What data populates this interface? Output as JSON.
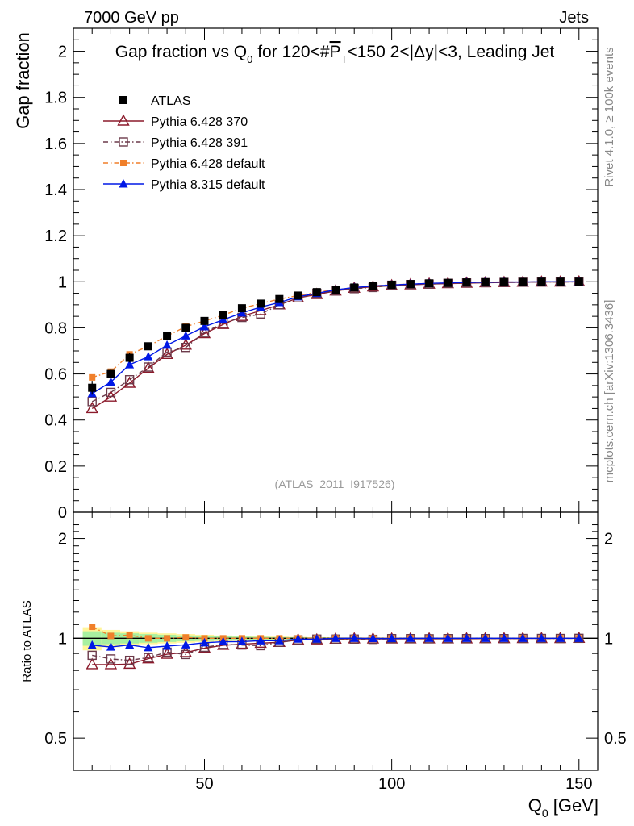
{
  "header": {
    "left": "7000 GeV pp",
    "right": "Jets"
  },
  "side_labels": {
    "rivet": "Rivet 4.1.0, ≥ 100k events",
    "mcplots": "mcplots.cern.ch [arXiv:1306.3436]"
  },
  "colors": {
    "atlas": "#000000",
    "py6_370": "#8b1a2b",
    "py6_391": "#6b3a4a",
    "py6_default": "#f07f2a",
    "py8_default": "#0018e6",
    "band_yellow": "#fff59a",
    "band_green": "#a8f0a0"
  },
  "chart_data": {
    "type": "line",
    "title": "Gap fraction vs Q0 for 120<#PT<150  2<|Δy|<3, Leading Jet",
    "title_parts": {
      "lead": "Gap fraction vs Q",
      "sub": "0",
      "for": " for 120<#",
      "p": "P",
      "t": "T",
      "tail": "<150  2<|Δy|<3, Leading Jet"
    },
    "xlabel": {
      "main": "Q",
      "sub": "0",
      "unit": " [GeV]"
    },
    "ylabel": "Gap fraction",
    "ratio_ylabel": "Ratio to ATLAS",
    "analysis_id": "(ATLAS_2011_I917526)",
    "xlim": [
      15,
      155
    ],
    "ylim": [
      0,
      2.1
    ],
    "ratio_ylim": [
      0.4,
      2.4
    ],
    "x_ticks": [
      50,
      100,
      150
    ],
    "x_tick_labels": [
      "50",
      "100",
      "150"
    ],
    "y_ticks": [
      0,
      0.2,
      0.4,
      0.6,
      0.8,
      1,
      1.2,
      1.4,
      1.6,
      1.8,
      2
    ],
    "y_tick_labels": [
      "0",
      "0.2",
      "0.4",
      "0.6",
      "0.8",
      "1",
      "1.2",
      "1.4",
      "1.6",
      "1.8",
      "2"
    ],
    "ratio_ticks": [
      0.5,
      1,
      2
    ],
    "ratio_tick_labels": [
      "0.5",
      "1",
      "2"
    ],
    "x": [
      20,
      25,
      30,
      35,
      40,
      45,
      50,
      55,
      60,
      65,
      70,
      75,
      80,
      85,
      90,
      95,
      100,
      105,
      110,
      115,
      120,
      125,
      130,
      135,
      140,
      145,
      150
    ],
    "series": [
      {
        "name": "ATLAS",
        "key": "atlas",
        "marker": "square-filled",
        "line": "none",
        "values": [
          0.54,
          0.6,
          0.67,
          0.72,
          0.765,
          0.8,
          0.83,
          0.855,
          0.885,
          0.905,
          0.925,
          0.94,
          0.955,
          0.965,
          0.975,
          0.982,
          0.987,
          0.99,
          0.993,
          0.995,
          0.997,
          0.998,
          0.999,
          0.999,
          1.0,
          1.0,
          1.0
        ],
        "errors": [
          0.03,
          0.02,
          0.02,
          0.015,
          0.015,
          0.012,
          0.01,
          0.01,
          0.008,
          0.008,
          0.006,
          0.005,
          0.005,
          0.004,
          0.004,
          0.003,
          0.003,
          0.002,
          0.002,
          0.002,
          0.002,
          0.001,
          0.001,
          0.001,
          0.001,
          0.001,
          0.001
        ]
      },
      {
        "name": "Pythia 6.428 370",
        "key": "py6_370",
        "marker": "triangle-open",
        "line": "solid",
        "values": [
          0.45,
          0.5,
          0.56,
          0.625,
          0.685,
          0.725,
          0.775,
          0.815,
          0.85,
          0.875,
          0.9,
          0.93,
          0.945,
          0.96,
          0.972,
          0.978,
          0.983,
          0.987,
          0.99,
          0.992,
          0.994,
          0.996,
          0.997,
          0.998,
          0.999,
          0.999,
          1.0
        ]
      },
      {
        "name": "Pythia 6.428 391",
        "key": "py6_391",
        "marker": "square-open",
        "line": "dashdot",
        "values": [
          0.48,
          0.52,
          0.575,
          0.63,
          0.695,
          0.715,
          0.78,
          0.82,
          0.845,
          0.86,
          0.9,
          0.93,
          0.95,
          0.96,
          0.97,
          0.975,
          0.985,
          0.988,
          0.99,
          0.993,
          0.995,
          0.996,
          0.997,
          0.998,
          0.999,
          0.999,
          1.0
        ]
      },
      {
        "name": "Pythia 6.428 default",
        "key": "py6_default",
        "marker": "square-filled-small",
        "line": "dashdot",
        "values": [
          0.585,
          0.61,
          0.685,
          0.72,
          0.765,
          0.805,
          0.83,
          0.855,
          0.885,
          0.905,
          0.925,
          0.94,
          0.955,
          0.965,
          0.975,
          0.982,
          0.987,
          0.99,
          0.993,
          0.995,
          0.997,
          0.998,
          0.999,
          0.999,
          1.0,
          1.0,
          1.0
        ]
      },
      {
        "name": "Pythia 8.315 default",
        "key": "py8_default",
        "marker": "triangle-filled",
        "line": "solid",
        "values": [
          0.515,
          0.565,
          0.64,
          0.675,
          0.725,
          0.765,
          0.805,
          0.835,
          0.865,
          0.89,
          0.91,
          0.935,
          0.95,
          0.965,
          0.975,
          0.981,
          0.986,
          0.99,
          0.993,
          0.995,
          0.997,
          0.998,
          0.999,
          0.999,
          1.0,
          1.0,
          1.0
        ]
      }
    ],
    "ratio_band_widths": {
      "yellow": [
        0.08,
        0.06,
        0.05,
        0.04,
        0.035,
        0.03,
        0.025,
        0.02,
        0.018,
        0.015,
        0.012,
        0.01,
        0.008,
        0.007,
        0.006,
        0.005,
        0.004,
        0.003,
        0.003,
        0.002,
        0.002,
        0.002,
        0.001,
        0.001,
        0.001,
        0.001,
        0.001
      ],
      "green": [
        0.05,
        0.04,
        0.035,
        0.03,
        0.025,
        0.02,
        0.018,
        0.015,
        0.012,
        0.01,
        0.008,
        0.007,
        0.006,
        0.005,
        0.004,
        0.003,
        0.003,
        0.002,
        0.002,
        0.002,
        0.001,
        0.001,
        0.001,
        0.001,
        0.001,
        0.001,
        0.001
      ]
    },
    "legend_position": "top-left"
  }
}
